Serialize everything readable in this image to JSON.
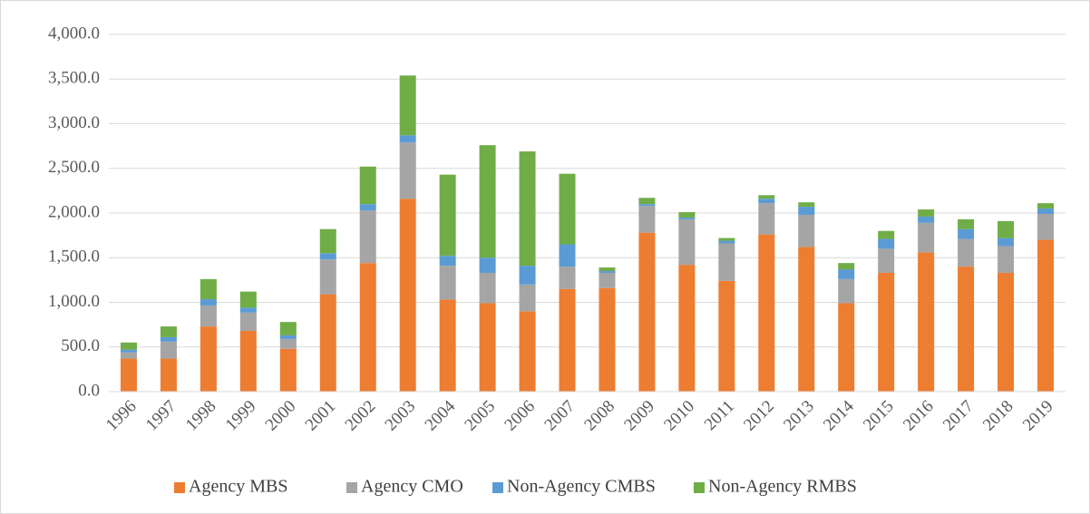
{
  "chart_data": {
    "type": "bar",
    "stacked": true,
    "categories": [
      "1996",
      "1997",
      "1998",
      "1999",
      "2000",
      "2001",
      "2002",
      "2003",
      "2004",
      "2005",
      "2006",
      "2007",
      "2008",
      "2009",
      "2010",
      "2011",
      "2012",
      "2013",
      "2014",
      "2015",
      "2016",
      "2017",
      "2018",
      "2019"
    ],
    "series": [
      {
        "name": "Agency MBS",
        "color": "#ed7d31",
        "values": [
          370,
          370,
          730,
          680,
          480,
          1090,
          1440,
          2160,
          1030,
          990,
          900,
          1150,
          1160,
          1780,
          1420,
          1240,
          1760,
          1620,
          990,
          1330,
          1560,
          1400,
          1330,
          1700
        ]
      },
      {
        "name": "Agency CMO",
        "color": "#a5a5a5",
        "values": [
          70,
          190,
          235,
          205,
          110,
          390,
          590,
          630,
          380,
          340,
          300,
          250,
          170,
          300,
          510,
          420,
          350,
          360,
          270,
          270,
          330,
          310,
          300,
          290
        ]
      },
      {
        "name": "Non-Agency CMBS",
        "color": "#5b9bd5",
        "values": [
          30,
          50,
          70,
          55,
          40,
          70,
          70,
          80,
          110,
          170,
          210,
          250,
          20,
          20,
          20,
          30,
          50,
          90,
          110,
          110,
          70,
          110,
          90,
          60
        ]
      },
      {
        "name": "Non-Agency RMBS",
        "color": "#70ad47",
        "values": [
          80,
          120,
          225,
          180,
          150,
          270,
          420,
          670,
          910,
          1260,
          1280,
          790,
          40,
          70,
          60,
          30,
          40,
          50,
          70,
          90,
          80,
          110,
          190,
          60
        ]
      }
    ],
    "ylim": [
      0,
      4000
    ],
    "yticks": [
      {
        "value": 0,
        "label": "0.0"
      },
      {
        "value": 500,
        "label": "500.0"
      },
      {
        "value": 1000,
        "label": "1,000.0"
      },
      {
        "value": 1500,
        "label": "1,500.0"
      },
      {
        "value": 2000,
        "label": "2,000.0"
      },
      {
        "value": 2500,
        "label": "2,500.0"
      },
      {
        "value": 3000,
        "label": "3,000.0"
      },
      {
        "value": 3500,
        "label": "3,500.0"
      },
      {
        "value": 4000,
        "label": "4,000.0"
      }
    ],
    "grid": true,
    "legend": "bottom"
  }
}
